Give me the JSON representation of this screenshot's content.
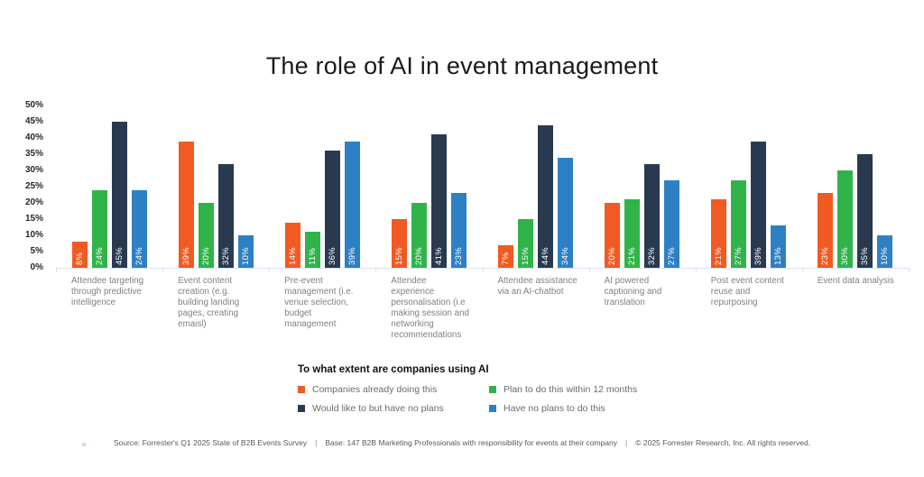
{
  "title": "The role of AI in event management",
  "chart_data": {
    "type": "bar",
    "title": "The role of AI in event management",
    "categories": [
      "Attendee targeting through predictive intelligence",
      "Event content creation (e.g. building landing pages, creating emaisl)",
      "Pre-event management (i.e. venue selection, budget management",
      "Attendee experience personalisation (i.e making session and networking recommendations",
      "Attendee assistance via an AI-chatbot",
      "AI powered captioning and translation",
      "Post event content reuse and repurposing",
      "Event data analysis"
    ],
    "series": [
      {
        "name": "Companies already doing this",
        "color": "#F15A22",
        "values": [
          8,
          39,
          14,
          15,
          7,
          20,
          21,
          23
        ]
      },
      {
        "name": "Plan to do this within 12 months",
        "color": "#30B44A",
        "values": [
          24,
          20,
          11,
          20,
          15,
          21,
          27,
          30
        ]
      },
      {
        "name": "Would like to but have no plans",
        "color": "#293A50",
        "values": [
          45,
          32,
          36,
          41,
          44,
          32,
          39,
          35
        ]
      },
      {
        "name": "Have no plans to do this",
        "color": "#2E80C4",
        "values": [
          24,
          10,
          39,
          23,
          34,
          27,
          13,
          10
        ]
      }
    ],
    "xlabel": "",
    "ylabel": "",
    "ylim": [
      0,
      50
    ],
    "yticks": [
      "50%",
      "45%",
      "40%",
      "35%",
      "30%",
      "25%",
      "20%",
      "15%",
      "10%",
      "5%",
      "0%"
    ],
    "value_suffix": "%",
    "grid": false,
    "legend_position": "bottom",
    "bar_value_labels": "inside-bottom, rotated 90deg, white"
  },
  "legend": {
    "title": "To what extent are companies using AI",
    "items": [
      {
        "label": "Companies already doing this",
        "color": "#F15A22"
      },
      {
        "label": "Plan to do this within 12 months",
        "color": "#30B44A"
      },
      {
        "label": "Would like to but have no plans",
        "color": "#293A50"
      },
      {
        "label": "Have no plans to do this",
        "color": "#2E80C4"
      }
    ]
  },
  "footer": {
    "source": "Source: Forrester's Q1 2025 State of B2B Events Survey",
    "separator": "|",
    "base": "Base: 147 B2B Marketing Professionals with responsibility for events at their company",
    "copyright": "© 2025 Forrester Research, Inc. All rights reserved."
  },
  "colors": {
    "background": "#ffffff",
    "axis_line": "#d9e1f2",
    "axis_label": "#262626",
    "category_label": "#808080",
    "footer_text": "#595959"
  }
}
